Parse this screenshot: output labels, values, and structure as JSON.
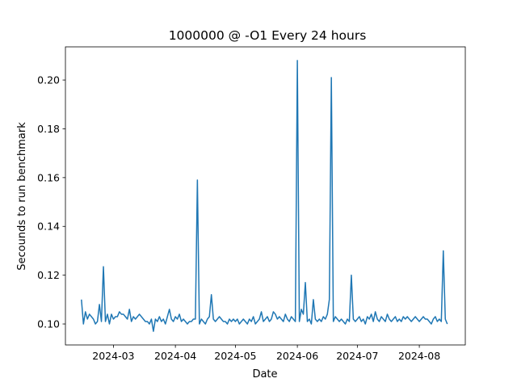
{
  "chart_data": {
    "type": "line",
    "title": "1000000 @ -O1 Every 24 hours",
    "xlabel": "Date",
    "ylabel": "Secounds to run benchmark",
    "color": "#1f77b4",
    "xlim": [
      "2024-02-06",
      "2024-08-24"
    ],
    "xticks": [
      {
        "value": "2024-03-01",
        "label": "2024-03"
      },
      {
        "value": "2024-04-01",
        "label": "2024-04"
      },
      {
        "value": "2024-05-01",
        "label": "2024-05"
      },
      {
        "value": "2024-06-01",
        "label": "2024-06"
      },
      {
        "value": "2024-07-01",
        "label": "2024-07"
      },
      {
        "value": "2024-08-01",
        "label": "2024-08"
      }
    ],
    "ylim": [
      0.0914,
      0.2136
    ],
    "yticks": [
      {
        "value": 0.1,
        "label": "0.10"
      },
      0.12,
      0.14,
      0.16,
      0.18,
      {
        "value": 0.2,
        "label": "0.20"
      }
    ],
    "x": [
      "2024-02-14",
      "2024-02-15",
      "2024-02-16",
      "2024-02-17",
      "2024-02-18",
      "2024-02-19",
      "2024-02-20",
      "2024-02-21",
      "2024-02-22",
      "2024-02-23",
      "2024-02-24",
      "2024-02-25",
      "2024-02-26",
      "2024-02-27",
      "2024-02-28",
      "2024-02-29",
      "2024-03-01",
      "2024-03-02",
      "2024-03-03",
      "2024-03-04",
      "2024-03-05",
      "2024-03-06",
      "2024-03-07",
      "2024-03-08",
      "2024-03-09",
      "2024-03-10",
      "2024-03-11",
      "2024-03-12",
      "2024-03-13",
      "2024-03-14",
      "2024-03-15",
      "2024-03-16",
      "2024-03-17",
      "2024-03-18",
      "2024-03-19",
      "2024-03-20",
      "2024-03-21",
      "2024-03-22",
      "2024-03-23",
      "2024-03-24",
      "2024-03-25",
      "2024-03-26",
      "2024-03-27",
      "2024-03-28",
      "2024-03-29",
      "2024-03-30",
      "2024-03-31",
      "2024-04-01",
      "2024-04-02",
      "2024-04-03",
      "2024-04-04",
      "2024-04-05",
      "2024-04-06",
      "2024-04-07",
      "2024-04-08",
      "2024-04-09",
      "2024-04-10",
      "2024-04-11",
      "2024-04-12",
      "2024-04-13",
      "2024-04-14",
      "2024-04-15",
      "2024-04-16",
      "2024-04-17",
      "2024-04-18",
      "2024-04-19",
      "2024-04-20",
      "2024-04-21",
      "2024-04-22",
      "2024-04-23",
      "2024-04-24",
      "2024-04-25",
      "2024-04-26",
      "2024-04-27",
      "2024-04-28",
      "2024-04-29",
      "2024-04-30",
      "2024-05-01",
      "2024-05-02",
      "2024-05-03",
      "2024-05-04",
      "2024-05-05",
      "2024-05-06",
      "2024-05-07",
      "2024-05-08",
      "2024-05-09",
      "2024-05-10",
      "2024-05-11",
      "2024-05-12",
      "2024-05-13",
      "2024-05-14",
      "2024-05-15",
      "2024-05-16",
      "2024-05-17",
      "2024-05-18",
      "2024-05-19",
      "2024-05-20",
      "2024-05-21",
      "2024-05-22",
      "2024-05-23",
      "2024-05-24",
      "2024-05-25",
      "2024-05-26",
      "2024-05-27",
      "2024-05-28",
      "2024-05-29",
      "2024-05-30",
      "2024-05-31",
      "2024-06-01",
      "2024-06-02",
      "2024-06-03",
      "2024-06-04",
      "2024-06-05",
      "2024-06-06",
      "2024-06-07",
      "2024-06-08",
      "2024-06-09",
      "2024-06-10",
      "2024-06-11",
      "2024-06-12",
      "2024-06-13",
      "2024-06-14",
      "2024-06-15",
      "2024-06-16",
      "2024-06-17",
      "2024-06-18",
      "2024-06-19",
      "2024-06-20",
      "2024-06-21",
      "2024-06-22",
      "2024-06-23",
      "2024-06-24",
      "2024-06-25",
      "2024-06-26",
      "2024-06-27",
      "2024-06-28",
      "2024-06-29",
      "2024-06-30",
      "2024-07-01",
      "2024-07-02",
      "2024-07-03",
      "2024-07-04",
      "2024-07-05",
      "2024-07-06",
      "2024-07-07",
      "2024-07-08",
      "2024-07-09",
      "2024-07-10",
      "2024-07-11",
      "2024-07-12",
      "2024-07-13",
      "2024-07-14",
      "2024-07-15",
      "2024-07-16",
      "2024-07-17",
      "2024-07-18",
      "2024-07-19",
      "2024-07-20",
      "2024-07-21",
      "2024-07-22",
      "2024-07-23",
      "2024-07-24",
      "2024-07-25",
      "2024-07-26",
      "2024-07-27",
      "2024-07-28",
      "2024-07-29",
      "2024-07-30",
      "2024-07-31",
      "2024-08-01",
      "2024-08-02",
      "2024-08-03",
      "2024-08-04",
      "2024-08-05",
      "2024-08-06",
      "2024-08-07",
      "2024-08-08",
      "2024-08-09",
      "2024-08-10",
      "2024-08-11",
      "2024-08-12",
      "2024-08-13",
      "2024-08-14",
      "2024-08-15"
    ],
    "values": [
      0.11,
      0.1,
      0.105,
      0.102,
      0.104,
      0.103,
      0.102,
      0.1,
      0.101,
      0.108,
      0.101,
      0.1235,
      0.101,
      0.104,
      0.1,
      0.104,
      0.102,
      0.103,
      0.103,
      0.105,
      0.104,
      0.104,
      0.103,
      0.102,
      0.106,
      0.101,
      0.103,
      0.102,
      0.103,
      0.104,
      0.103,
      0.102,
      0.101,
      0.101,
      0.1,
      0.102,
      0.097,
      0.102,
      0.101,
      0.103,
      0.101,
      0.102,
      0.1,
      0.103,
      0.106,
      0.102,
      0.101,
      0.103,
      0.102,
      0.104,
      0.101,
      0.102,
      0.101,
      0.1,
      0.101,
      0.101,
      0.102,
      0.102,
      0.159,
      0.1,
      0.102,
      0.101,
      0.1,
      0.102,
      0.103,
      0.112,
      0.102,
      0.101,
      0.102,
      0.103,
      0.102,
      0.101,
      0.101,
      0.1,
      0.102,
      0.101,
      0.102,
      0.101,
      0.102,
      0.1,
      0.101,
      0.102,
      0.101,
      0.1,
      0.102,
      0.101,
      0.103,
      0.1,
      0.101,
      0.102,
      0.105,
      0.101,
      0.102,
      0.103,
      0.101,
      0.102,
      0.105,
      0.104,
      0.102,
      0.103,
      0.102,
      0.101,
      0.104,
      0.102,
      0.101,
      0.103,
      0.102,
      0.101,
      0.208,
      0.101,
      0.106,
      0.104,
      0.117,
      0.101,
      0.102,
      0.1,
      0.11,
      0.102,
      0.101,
      0.102,
      0.101,
      0.103,
      0.102,
      0.104,
      0.11,
      0.201,
      0.101,
      0.103,
      0.102,
      0.101,
      0.102,
      0.101,
      0.1,
      0.102,
      0.101,
      0.12,
      0.102,
      0.101,
      0.102,
      0.103,
      0.101,
      0.102,
      0.1,
      0.103,
      0.102,
      0.104,
      0.101,
      0.105,
      0.102,
      0.101,
      0.103,
      0.102,
      0.101,
      0.104,
      0.102,
      0.101,
      0.102,
      0.103,
      0.101,
      0.102,
      0.101,
      0.103,
      0.102,
      0.103,
      0.102,
      0.101,
      0.102,
      0.103,
      0.102,
      0.101,
      0.102,
      0.103,
      0.102,
      0.102,
      0.101,
      0.1,
      0.102,
      0.103,
      0.101,
      0.102,
      0.101,
      0.13,
      0.102,
      0.1
    ]
  }
}
